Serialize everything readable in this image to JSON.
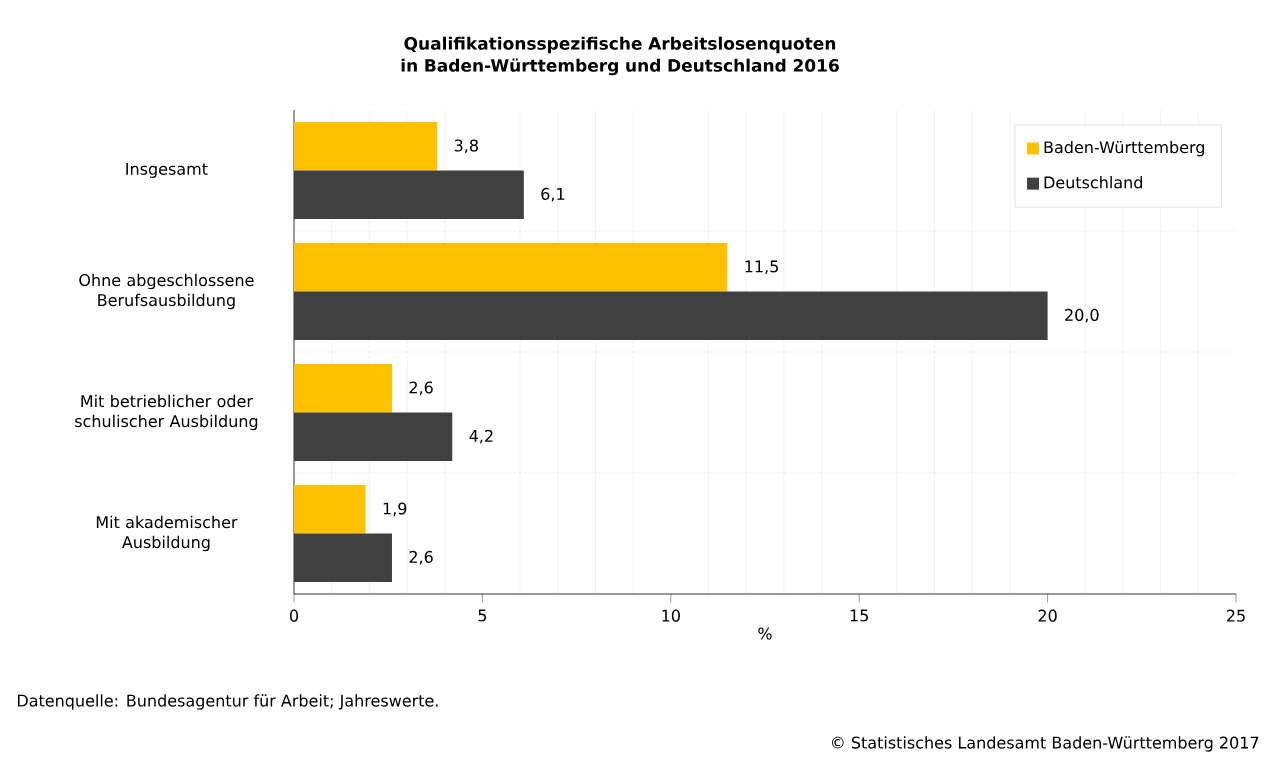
{
  "chart_data": {
    "type": "bar",
    "orientation": "horizontal",
    "title": "Qualifikationsspezifische Arbeitslosenquoten in Baden-Württemberg und Deutschland 2016",
    "categories": [
      "Insgesamt",
      "Ohne abgeschlossene Berufsausbildung",
      "Mit betrieblicher oder schulischer Ausbildung",
      "Mit akademischer Ausbildung"
    ],
    "series": [
      {
        "name": "Baden-Württemberg",
        "color": "#ffc000",
        "values": [
          3.8,
          11.5,
          2.6,
          1.9
        ],
        "value_labels": [
          "3,8",
          "11,5",
          "2,6",
          "1,9"
        ]
      },
      {
        "name": "Deutschland",
        "color": "#404040",
        "values": [
          6.1,
          20.0,
          4.2,
          2.6
        ],
        "value_labels": [
          "6,1",
          "20,0",
          "4,2",
          "2,6"
        ]
      }
    ],
    "xlabel": "%",
    "xlim": [
      0,
      25
    ],
    "xticks": [
      0,
      5,
      10,
      15,
      20,
      25
    ],
    "grid": true,
    "legend": "top right",
    "annotations": [
      "Datenquelle: Bundesagentur für Arbeit; Jahreswerte.",
      "© Statistisches Landesamt Baden-Württemberg 2017"
    ]
  }
}
